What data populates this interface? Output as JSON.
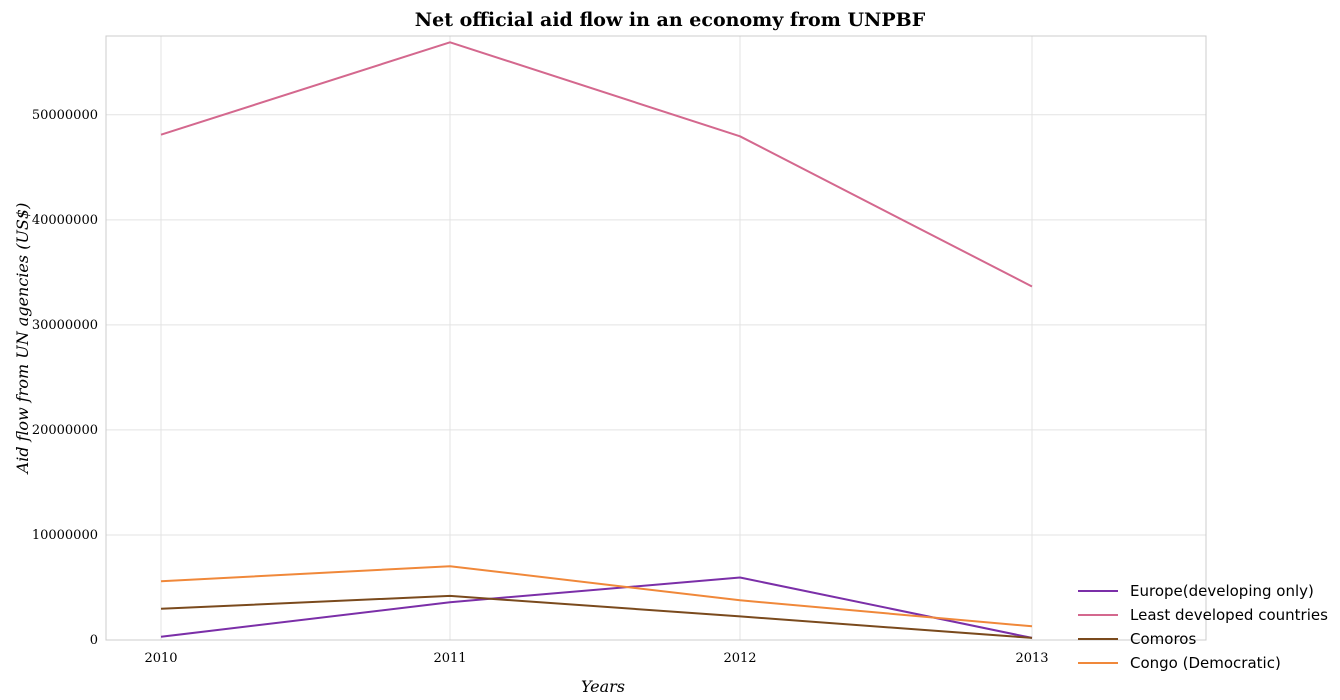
{
  "chart_data": {
    "type": "line",
    "title": "Net official aid flow in an economy from UNPBF",
    "xlabel": "Years",
    "ylabel": "Aid flow from UN agencies (US$)",
    "x": [
      "2010",
      "2011",
      "2012",
      "2013"
    ],
    "y_ticks": [
      "0",
      "10000000",
      "20000000",
      "30000000",
      "40000000",
      "50000000"
    ],
    "ylim": [
      0,
      57500000
    ],
    "grid": true,
    "legend_position": "bottom-right",
    "series": [
      {
        "name": "Europe(developing only)",
        "color": "#7b2fa8",
        "values": [
          300000,
          3600000,
          5950000,
          200000
        ]
      },
      {
        "name": "Least developed countries",
        "color": "#d4688e",
        "values": [
          48100000,
          56900000,
          47950000,
          33650000
        ]
      },
      {
        "name": "Comoros",
        "color": "#7a4a1d",
        "values": [
          2970000,
          4200000,
          2250000,
          200000
        ]
      },
      {
        "name": "Congo (Democratic)",
        "color": "#f0883a",
        "values": [
          5600000,
          7030000,
          3780000,
          1300000
        ]
      }
    ]
  }
}
